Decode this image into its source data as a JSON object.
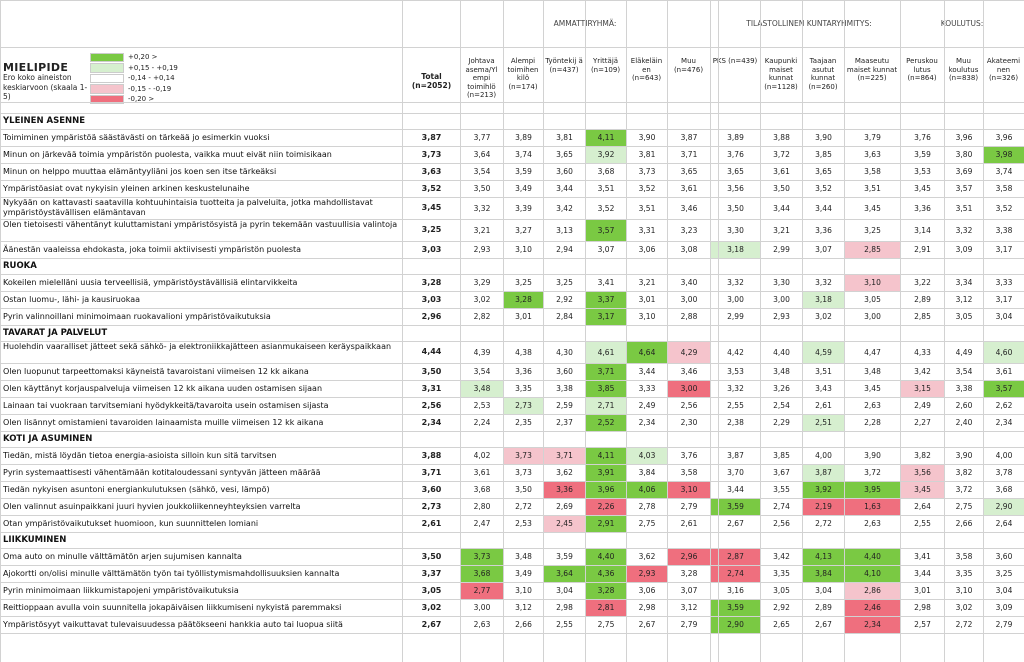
{
  "header": {
    "title": "MIELIPIDE",
    "subtitle": "Ero koko aineiston keskiarvoon (skaala 1-5)",
    "total_label": "Total (n=2052)",
    "groups": [
      "AMMATTIRYHMÄ:",
      "TILASTOLLINEN KUNTARYHMITYS:",
      "KOULUTUS:"
    ]
  },
  "legend": [
    {
      "label": "+0,20 >",
      "color": "#7ac943"
    },
    {
      "label": "+0,15 - +0,19",
      "color": "#d6efcf"
    },
    {
      "label": "-0,14 - +0,14",
      "color": "#ffffff"
    },
    {
      "label": "-0,15 - -0,19",
      "color": "#f5c4cc"
    },
    {
      "label": "-0,20 >",
      "color": "#ef6f7e"
    }
  ],
  "columns": [
    {
      "label": "Johtava asema/Yl empi toimihlö (n=213)"
    },
    {
      "label": "Alempi toimihen kilö (n=174)"
    },
    {
      "label": "Työntekij ä (n=437)"
    },
    {
      "label": "Yrittäjä (n=109)"
    },
    {
      "label": "Eläkeläin en (n=643)"
    },
    {
      "label": "Muu (n=476)"
    },
    {
      "label": "PKS (n=439)"
    },
    {
      "label": "Kaupunki maiset kunnat (n=1128)"
    },
    {
      "label": "Taajaan asutut kunnat (n=260)"
    },
    {
      "label": "Maaseutu maiset kunnat (n=225)"
    },
    {
      "label": "Peruskou lutus (n=864)"
    },
    {
      "label": "Muu koulutus (n=838)"
    },
    {
      "label": "Akateemi nen (n=326)"
    }
  ],
  "rows": [
    {
      "section": "YLEINEN ASENNE"
    },
    {
      "label": "Toimiminen ympäristöä säästävästi on tärkeää jo esimerkin vuoksi",
      "total": "3,87",
      "values": [
        "3,77",
        "3,89",
        "3,81",
        "4,11",
        "3,90",
        "3,87",
        "3,89",
        "3,88",
        "3,90",
        "3,79",
        "3,76",
        "3,96",
        "3,96"
      ],
      "hl": [
        "",
        "",
        "",
        "g",
        "",
        "",
        "",
        "",
        "",
        "",
        "",
        "",
        ""
      ]
    },
    {
      "label": "Minun on järkevää toimia ympäristön puolesta, vaikka muut eivät niin toimisikaan",
      "total": "3,73",
      "values": [
        "3,64",
        "3,74",
        "3,65",
        "3,92",
        "3,81",
        "3,71",
        "3,76",
        "3,72",
        "3,85",
        "3,63",
        "3,59",
        "3,80",
        "3,98"
      ],
      "hl": [
        "",
        "",
        "",
        "lg",
        "",
        "",
        "",
        "",
        "",
        "",
        "",
        "",
        "g"
      ]
    },
    {
      "label": "Minun on helppo muuttaa elämäntyyliäni jos koen sen itse tärkeäksi",
      "total": "3,63",
      "values": [
        "3,54",
        "3,59",
        "3,60",
        "3,68",
        "3,73",
        "3,65",
        "3,65",
        "3,61",
        "3,65",
        "3,58",
        "3,53",
        "3,69",
        "3,74"
      ],
      "hl": [
        "",
        "",
        "",
        "",
        "",
        "",
        "",
        "",
        "",
        "",
        "",
        "",
        ""
      ]
    },
    {
      "label": "Ympäristöasiat ovat nykyisin yleinen arkinen keskustelunaihe",
      "total": "3,52",
      "values": [
        "3,50",
        "3,49",
        "3,44",
        "3,51",
        "3,52",
        "3,61",
        "3,56",
        "3,50",
        "3,52",
        "3,51",
        "3,45",
        "3,57",
        "3,58"
      ],
      "hl": [
        "",
        "",
        "",
        "",
        "",
        "",
        "",
        "",
        "",
        "",
        "",
        "",
        ""
      ]
    },
    {
      "label": "Nykyään on kattavasti saatavilla kohtuuhintaisia tuotteita ja palveluita, jotka mahdollistavat ympäristöystävällisen elämäntavan",
      "total": "3,45",
      "values": [
        "3,32",
        "3,39",
        "3,42",
        "3,52",
        "3,51",
        "3,46",
        "3,50",
        "3,44",
        "3,44",
        "3,45",
        "3,36",
        "3,51",
        "3,52"
      ],
      "hl": [
        "",
        "",
        "",
        "",
        "",
        "",
        "",
        "",
        "",
        "",
        "",
        "",
        ""
      ],
      "tall": true
    },
    {
      "label": "Olen tietoisesti vähentänyt kuluttamistani ympäristösyistä ja pyrin tekemään vastuullisia valintoja",
      "total": "3,25",
      "values": [
        "3,21",
        "3,27",
        "3,13",
        "3,57",
        "3,31",
        "3,23",
        "3,30",
        "3,21",
        "3,36",
        "3,25",
        "3,14",
        "3,32",
        "3,38"
      ],
      "hl": [
        "",
        "",
        "",
        "g",
        "",
        "",
        "",
        "",
        "",
        "",
        "",
        "",
        ""
      ],
      "tall": true
    },
    {
      "label": "Äänestän vaaleissa ehdokasta, joka toimii aktiivisesti ympäristön puolesta",
      "total": "3,03",
      "values": [
        "2,93",
        "3,10",
        "2,94",
        "3,07",
        "3,06",
        "3,08",
        "3,18",
        "2,99",
        "3,07",
        "2,85",
        "2,91",
        "3,09",
        "3,17"
      ],
      "hl": [
        "",
        "",
        "",
        "",
        "",
        "",
        "lg",
        "",
        "",
        "lp",
        "",
        "",
        ""
      ]
    },
    {
      "section": "RUOKA"
    },
    {
      "label": "Kokeilen mielelläni uusia terveellisiä, ympäristöystävällisiä elintarvikkeita",
      "total": "3,28",
      "values": [
        "3,29",
        "3,25",
        "3,25",
        "3,41",
        "3,21",
        "3,40",
        "3,32",
        "3,30",
        "3,32",
        "3,10",
        "3,22",
        "3,34",
        "3,33"
      ],
      "hl": [
        "",
        "",
        "",
        "",
        "",
        "",
        "",
        "",
        "",
        "lp",
        "",
        "",
        ""
      ]
    },
    {
      "label": "Ostan luomu-, lähi- ja kausiruokaa",
      "total": "3,03",
      "values": [
        "3,02",
        "3,28",
        "2,92",
        "3,37",
        "3,01",
        "3,00",
        "3,00",
        "3,00",
        "3,18",
        "3,05",
        "2,89",
        "3,12",
        "3,17"
      ],
      "hl": [
        "",
        "g",
        "",
        "g",
        "",
        "",
        "",
        "",
        "lg",
        "",
        "",
        "",
        ""
      ]
    },
    {
      "label": "Pyrin valinnoillani minimoimaan ruokavalioni ympäristövaikutuksia",
      "total": "2,96",
      "values": [
        "2,82",
        "3,01",
        "2,84",
        "3,17",
        "3,10",
        "2,88",
        "2,99",
        "2,93",
        "3,02",
        "3,00",
        "2,85",
        "3,05",
        "3,04"
      ],
      "hl": [
        "",
        "",
        "",
        "g",
        "",
        "",
        "",
        "",
        "",
        "",
        "",
        "",
        ""
      ]
    },
    {
      "section": "TAVARAT JA PALVELUT"
    },
    {
      "label": "Huolehdin vaaralliset jätteet sekä sähkö- ja elektroniikkajätteen asianmukaiseen keräyspaikkaan",
      "total": "4,44",
      "values": [
        "4,39",
        "4,38",
        "4,30",
        "4,61",
        "4,64",
        "4,29",
        "4,42",
        "4,40",
        "4,59",
        "4,47",
        "4,33",
        "4,49",
        "4,60"
      ],
      "hl": [
        "",
        "",
        "",
        "lg",
        "g",
        "lp",
        "",
        "",
        "lg",
        "",
        "",
        "",
        "lg"
      ],
      "tall": true
    },
    {
      "label": "Olen luopunut tarpeettomaksi käyneistä tavaroistani viimeisen 12 kk aikana",
      "total": "3,50",
      "values": [
        "3,54",
        "3,36",
        "3,60",
        "3,71",
        "3,44",
        "3,46",
        "3,53",
        "3,48",
        "3,51",
        "3,48",
        "3,42",
        "3,54",
        "3,61"
      ],
      "hl": [
        "",
        "",
        "",
        "g",
        "",
        "",
        "",
        "",
        "",
        "",
        "",
        "",
        ""
      ]
    },
    {
      "label": "Olen käyttänyt korjauspalveluja viimeisen 12 kk aikana uuden ostamisen sijaan",
      "total": "3,31",
      "values": [
        "3,48",
        "3,35",
        "3,38",
        "3,85",
        "3,33",
        "3,00",
        "3,32",
        "3,26",
        "3,43",
        "3,45",
        "3,15",
        "3,38",
        "3,57"
      ],
      "hl": [
        "lg",
        "",
        "",
        "g",
        "",
        "r",
        "",
        "",
        "",
        "",
        "lp",
        "",
        "g"
      ]
    },
    {
      "label": "Lainaan tai vuokraan tarvitsemiani hyödykkeitä/tavaroita usein ostamisen sijasta",
      "total": "2,56",
      "values": [
        "2,53",
        "2,73",
        "2,59",
        "2,71",
        "2,49",
        "2,56",
        "2,55",
        "2,54",
        "2,61",
        "2,63",
        "2,49",
        "2,60",
        "2,62"
      ],
      "hl": [
        "",
        "lg",
        "",
        "lg",
        "",
        "",
        "",
        "",
        "",
        "",
        "",
        "",
        ""
      ]
    },
    {
      "label": "Olen lisännyt omistamieni tavaroiden lainaamista muille viimeisen 12 kk aikana",
      "total": "2,34",
      "values": [
        "2,24",
        "2,35",
        "2,37",
        "2,52",
        "2,34",
        "2,30",
        "2,38",
        "2,29",
        "2,51",
        "2,28",
        "2,27",
        "2,40",
        "2,34"
      ],
      "hl": [
        "",
        "",
        "",
        "g",
        "",
        "",
        "",
        "",
        "lg",
        "",
        "",
        "",
        ""
      ]
    },
    {
      "section": "KOTI JA ASUMINEN"
    },
    {
      "label": "Tiedän, mistä löydän tietoa energia-asioista silloin kun sitä tarvitsen",
      "total": "3,88",
      "values": [
        "4,02",
        "3,73",
        "3,71",
        "4,11",
        "4,03",
        "3,76",
        "3,87",
        "3,85",
        "4,00",
        "3,90",
        "3,82",
        "3,90",
        "4,00"
      ],
      "hl": [
        "",
        "lp",
        "lp",
        "g",
        "lg",
        "",
        "",
        "",
        "",
        "",
        "",
        "",
        ""
      ]
    },
    {
      "label": "Pyrin systemaattisesti vähentämään kotitaloudessani syntyvän jätteen määrää",
      "total": "3,71",
      "values": [
        "3,61",
        "3,73",
        "3,62",
        "3,91",
        "3,84",
        "3,58",
        "3,70",
        "3,67",
        "3,87",
        "3,72",
        "3,56",
        "3,82",
        "3,78"
      ],
      "hl": [
        "",
        "",
        "",
        "g",
        "",
        "",
        "",
        "",
        "lg",
        "",
        "lp",
        "",
        ""
      ]
    },
    {
      "label": "Tiedän nykyisen asuntoni energiankulutuksen (sähkö, vesi, lämpö)",
      "total": "3,60",
      "values": [
        "3,68",
        "3,50",
        "3,36",
        "3,96",
        "4,06",
        "3,10",
        "3,44",
        "3,55",
        "3,92",
        "3,95",
        "3,45",
        "3,72",
        "3,68"
      ],
      "hl": [
        "",
        "",
        "r",
        "g",
        "g",
        "r",
        "",
        "",
        "g",
        "g",
        "lp",
        "",
        ""
      ]
    },
    {
      "label": "Olen valinnut asuinpaikkani juuri hyvien joukkoliikenneyhteyksien varrelta",
      "total": "2,73",
      "values": [
        "2,80",
        "2,72",
        "2,69",
        "2,26",
        "2,78",
        "2,79",
        "3,59",
        "2,74",
        "2,19",
        "1,63",
        "2,64",
        "2,75",
        "2,90"
      ],
      "hl": [
        "",
        "",
        "",
        "r",
        "",
        "",
        "g",
        "",
        "r",
        "r",
        "",
        "",
        "lg"
      ]
    },
    {
      "label": "Otan ympäristövaikutukset huomioon, kun suunnittelen lomiani",
      "total": "2,61",
      "values": [
        "2,47",
        "2,53",
        "2,45",
        "2,91",
        "2,75",
        "2,61",
        "2,67",
        "2,56",
        "2,72",
        "2,63",
        "2,55",
        "2,66",
        "2,64"
      ],
      "hl": [
        "",
        "",
        "lp",
        "g",
        "",
        "",
        "",
        "",
        "",
        "",
        "",
        "",
        ""
      ]
    },
    {
      "section": "LIIKKUMINEN"
    },
    {
      "label": "Oma auto on minulle välttämätön arjen sujumisen kannalta",
      "total": "3,50",
      "values": [
        "3,73",
        "3,48",
        "3,59",
        "4,40",
        "3,62",
        "2,96",
        "2,87",
        "3,42",
        "4,13",
        "4,40",
        "3,41",
        "3,58",
        "3,60"
      ],
      "hl": [
        "g",
        "",
        "",
        "g",
        "",
        "r",
        "r",
        "",
        "g",
        "g",
        "",
        "",
        ""
      ]
    },
    {
      "label": "Ajokortti on/olisi minulle välttämätön työn tai työllistymismahdollisuuksien kannalta",
      "total": "3,37",
      "values": [
        "3,68",
        "3,49",
        "3,64",
        "4,36",
        "2,93",
        "3,28",
        "2,74",
        "3,35",
        "3,84",
        "4,10",
        "3,44",
        "3,35",
        "3,25"
      ],
      "hl": [
        "g",
        "",
        "g",
        "g",
        "r",
        "",
        "r",
        "",
        "g",
        "g",
        "",
        "",
        ""
      ]
    },
    {
      "label": "Pyrin minimoimaan liikkumistapojeni ympäristövaikutuksia",
      "total": "3,05",
      "values": [
        "2,77",
        "3,10",
        "3,04",
        "3,28",
        "3,06",
        "3,07",
        "3,16",
        "3,05",
        "3,04",
        "2,86",
        "3,01",
        "3,10",
        "3,04"
      ],
      "hl": [
        "r",
        "",
        "",
        "g",
        "",
        "",
        "",
        "",
        "",
        "lp",
        "",
        "",
        ""
      ]
    },
    {
      "label": "Reittioppaan avulla voin suunnitella jokapäiväisen liikkumiseni nykyistä paremmaksi",
      "total": "3,02",
      "values": [
        "3,00",
        "3,12",
        "2,98",
        "2,81",
        "2,98",
        "3,12",
        "3,59",
        "2,92",
        "2,89",
        "2,46",
        "2,98",
        "3,02",
        "3,09"
      ],
      "hl": [
        "",
        "",
        "",
        "r",
        "",
        "",
        "g",
        "",
        "",
        "r",
        "",
        "",
        ""
      ]
    },
    {
      "label": "Ympäristösyyt vaikuttavat tulevaisuudessa päätökseeni hankkia auto tai luopua siitä",
      "total": "2,67",
      "values": [
        "2,63",
        "2,66",
        "2,55",
        "2,75",
        "2,67",
        "2,79",
        "2,90",
        "2,65",
        "2,67",
        "2,34",
        "2,57",
        "2,72",
        "2,79"
      ],
      "hl": [
        "",
        "",
        "",
        "",
        "",
        "",
        "g",
        "",
        "",
        "r",
        "",
        "",
        ""
      ]
    }
  ]
}
